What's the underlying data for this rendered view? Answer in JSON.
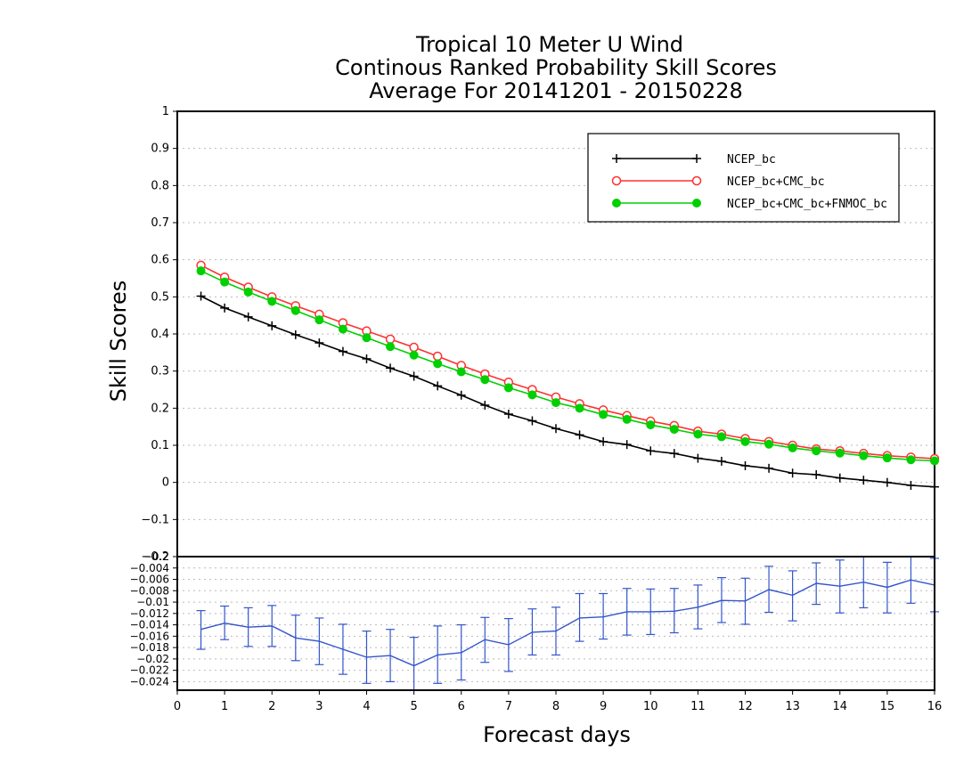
{
  "title": {
    "line1": "Tropical 10 Meter U Wind",
    "line2": "Continous Ranked Probability Skill Scores",
    "line3": "Average For 20141201 - 20150228"
  },
  "chart_data": [
    {
      "type": "line",
      "panel": "main",
      "xlabel": "Forecast days",
      "ylabel": "Skill Scores",
      "xlim": [
        0,
        16
      ],
      "ylim": [
        -0.2,
        1
      ],
      "yticks": [
        "−0.2",
        "−0.1",
        "0",
        "0.1",
        "0.2",
        "0.3",
        "0.4",
        "0.5",
        "0.6",
        "0.7",
        "0.8",
        "0.9",
        "1"
      ],
      "ytick_values": [
        -0.2,
        -0.1,
        0,
        0.1,
        0.2,
        0.3,
        0.4,
        0.5,
        0.6,
        0.7,
        0.8,
        0.9,
        1
      ],
      "grid": true,
      "legend_position": "top-right",
      "x": [
        0.5,
        1,
        1.5,
        2,
        2.5,
        3,
        3.5,
        4,
        4.5,
        5,
        5.5,
        6,
        6.5,
        7,
        7.5,
        8,
        8.5,
        9,
        9.5,
        10,
        10.5,
        11,
        11.5,
        12,
        12.5,
        13,
        13.5,
        14,
        14.5,
        15,
        15.5,
        16
      ],
      "series": [
        {
          "name": "NCEP_bc",
          "color": "#000000",
          "marker": "plus",
          "values": [
            0.502,
            0.47,
            0.446,
            0.422,
            0.398,
            0.376,
            0.353,
            0.333,
            0.308,
            0.286,
            0.26,
            0.235,
            0.208,
            0.184,
            0.166,
            0.145,
            0.128,
            0.11,
            0.102,
            0.085,
            0.078,
            0.065,
            0.057,
            0.045,
            0.038,
            0.025,
            0.021,
            0.012,
            0.006,
            0.0,
            -0.008,
            -0.012
          ]
        },
        {
          "name": "NCEP_bc+CMC_bc",
          "color": "#ff3030",
          "marker": "open-circle",
          "values": [
            0.585,
            0.553,
            0.526,
            0.5,
            0.476,
            0.453,
            0.43,
            0.408,
            0.386,
            0.364,
            0.34,
            0.315,
            0.292,
            0.27,
            0.25,
            0.23,
            0.212,
            0.195,
            0.18,
            0.165,
            0.153,
            0.138,
            0.13,
            0.118,
            0.11,
            0.1,
            0.09,
            0.085,
            0.078,
            0.072,
            0.068,
            0.064
          ]
        },
        {
          "name": "NCEP_bc+CMC_bc+FNMOC_bc",
          "color": "#00d000",
          "marker": "filled-circle",
          "values": [
            0.57,
            0.54,
            0.513,
            0.488,
            0.463,
            0.438,
            0.413,
            0.39,
            0.366,
            0.343,
            0.32,
            0.298,
            0.277,
            0.255,
            0.236,
            0.215,
            0.2,
            0.183,
            0.17,
            0.155,
            0.143,
            0.13,
            0.123,
            0.11,
            0.103,
            0.093,
            0.085,
            0.079,
            0.072,
            0.066,
            0.061,
            0.058
          ]
        }
      ]
    },
    {
      "type": "line",
      "panel": "difference",
      "xlim": [
        0,
        16
      ],
      "ylim": [
        -0.0255,
        -0.002
      ],
      "yticks": [
        "−0.024",
        "−0.022",
        "−0.02",
        "−0.018",
        "−0.016",
        "−0.014",
        "−0.012",
        "−0.01",
        "−0.008",
        "−0.006",
        "−0.004"
      ],
      "ytick_values": [
        -0.024,
        -0.022,
        -0.02,
        -0.018,
        -0.016,
        -0.014,
        -0.012,
        -0.01,
        -0.008,
        -0.006,
        -0.004
      ],
      "xticks": [
        "0",
        "1",
        "2",
        "3",
        "4",
        "5",
        "6",
        "7",
        "8",
        "9",
        "10",
        "11",
        "12",
        "13",
        "14",
        "15",
        "16"
      ],
      "grid": true,
      "x": [
        0.5,
        1,
        1.5,
        2,
        2.5,
        3,
        3.5,
        4,
        4.5,
        5,
        5.5,
        6,
        6.5,
        7,
        7.5,
        8,
        8.5,
        9,
        9.5,
        10,
        10.5,
        11,
        11.5,
        12,
        12.5,
        13,
        13.5,
        14,
        14.5,
        15,
        15.5,
        16
      ],
      "series": [
        {
          "color": "#3355cc",
          "values": [
            -0.0148,
            -0.0137,
            -0.0144,
            -0.0142,
            -0.0163,
            -0.0169,
            -0.0183,
            -0.0197,
            -0.0194,
            -0.0212,
            -0.0193,
            -0.0189,
            -0.0166,
            -0.0175,
            -0.0153,
            -0.0151,
            -0.0128,
            -0.0126,
            -0.0117,
            -0.0117,
            -0.0116,
            -0.0109,
            -0.0097,
            -0.0098,
            -0.0078,
            -0.0088,
            -0.0067,
            -0.0072,
            -0.0065,
            -0.0074,
            -0.0061,
            -0.007
          ],
          "error_low": [
            -0.0183,
            -0.0166,
            -0.0178,
            -0.0178,
            -0.0203,
            -0.021,
            -0.0227,
            -0.0243,
            -0.024,
            -0.0262,
            -0.0243,
            -0.0237,
            -0.0206,
            -0.0222,
            -0.0193,
            -0.0193,
            -0.0169,
            -0.0165,
            -0.0158,
            -0.0157,
            -0.0154,
            -0.0147,
            -0.0136,
            -0.0139,
            -0.0118,
            -0.0133,
            -0.0104,
            -0.0119,
            -0.011,
            -0.0119,
            -0.0102,
            -0.0117
          ],
          "error_high": [
            -0.0115,
            -0.0107,
            -0.011,
            -0.0106,
            -0.0123,
            -0.0128,
            -0.0139,
            -0.0151,
            -0.0148,
            -0.0162,
            -0.0142,
            -0.014,
            -0.0127,
            -0.0129,
            -0.0112,
            -0.0109,
            -0.0085,
            -0.0085,
            -0.0076,
            -0.0077,
            -0.0076,
            -0.007,
            -0.0057,
            -0.0058,
            -0.0037,
            -0.0045,
            -0.0031,
            -0.0026,
            -0.002,
            -0.003,
            -0.002,
            -0.0023
          ]
        }
      ]
    }
  ]
}
